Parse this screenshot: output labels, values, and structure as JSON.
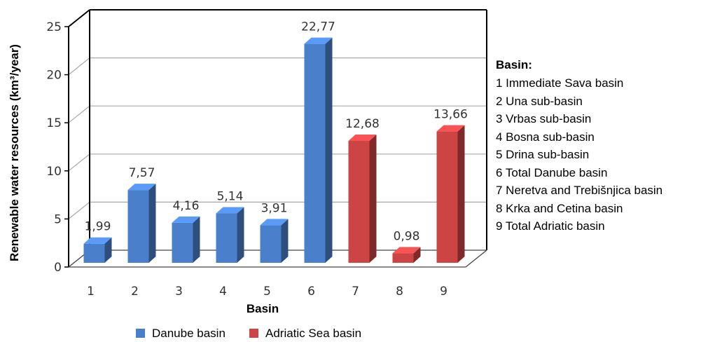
{
  "chart_data": {
    "type": "bar",
    "categories": [
      "1",
      "2",
      "3",
      "4",
      "5",
      "6",
      "7",
      "8",
      "9"
    ],
    "values": [
      1.99,
      7.57,
      4.16,
      5.14,
      3.91,
      22.77,
      12.68,
      0.98,
      13.66
    ],
    "value_labels": [
      "1,99",
      "7,57",
      "4,16",
      "5,14",
      "3,91",
      "22,77",
      "12,68",
      "0,98",
      "13,66"
    ],
    "groups": [
      "Danube basin",
      "Danube basin",
      "Danube basin",
      "Danube basin",
      "Danube basin",
      "Danube basin",
      "Adriatic Sea basin",
      "Adriatic Sea basin",
      "Adriatic Sea basin"
    ],
    "legend": [
      {
        "name": "Danube basin",
        "color": "#4a7fcc"
      },
      {
        "name": "Adriatic Sea basin",
        "color": "#cc4444"
      }
    ],
    "xlabel": "Basin",
    "ylabel": "Renewable water resources (km³/year)",
    "ylim": [
      0,
      25
    ],
    "yticks": [
      0,
      5,
      10,
      15,
      20,
      25
    ],
    "grid": true,
    "legend_placement": "bottom",
    "style": "3d"
  },
  "basin_legend": {
    "heading": "Basin:",
    "items": [
      "1 Immediate Sava basin",
      "2 Una sub-basin",
      "3 Vrbas sub-basin",
      "4 Bosna sub-basin",
      "5 Drina sub-basin",
      "6 Total Danube basin",
      "7 Neretva and Trebišnjica basin",
      "8 Krka and Cetina basin",
      "9 Total Adriatic basin"
    ]
  }
}
